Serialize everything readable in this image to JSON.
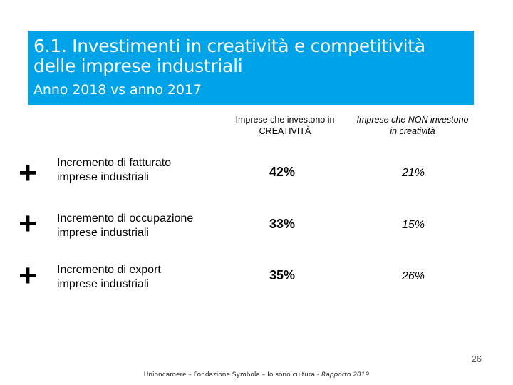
{
  "title": {
    "line1": "6.1. Investimenti in creatività e competitività",
    "line2": "delle imprese industriali",
    "subtitle": "Anno 2018 vs anno 2017"
  },
  "columns": {
    "creative": [
      "Imprese che investono in",
      "CREATIVITÀ"
    ],
    "non_creative": [
      "Imprese che NON investono",
      "in creatività"
    ]
  },
  "rows": [
    {
      "symbol": "+",
      "label": [
        "Incremento di fatturato",
        "imprese industriali"
      ],
      "creative": "42%",
      "non_creative": "21%"
    },
    {
      "symbol": "+",
      "label": [
        "Incremento di occupazione",
        "imprese industriali"
      ],
      "creative": "33%",
      "non_creative": "15%"
    },
    {
      "symbol": "+",
      "label": [
        "Incremento di export",
        "imprese industriali"
      ],
      "creative": "35%",
      "non_creative": "26%"
    }
  ],
  "page_number": "26",
  "footer": {
    "text": "Unioncamere – Fondazione Symbola – Io sono cultura - ",
    "report": "Rapporto 2019"
  }
}
